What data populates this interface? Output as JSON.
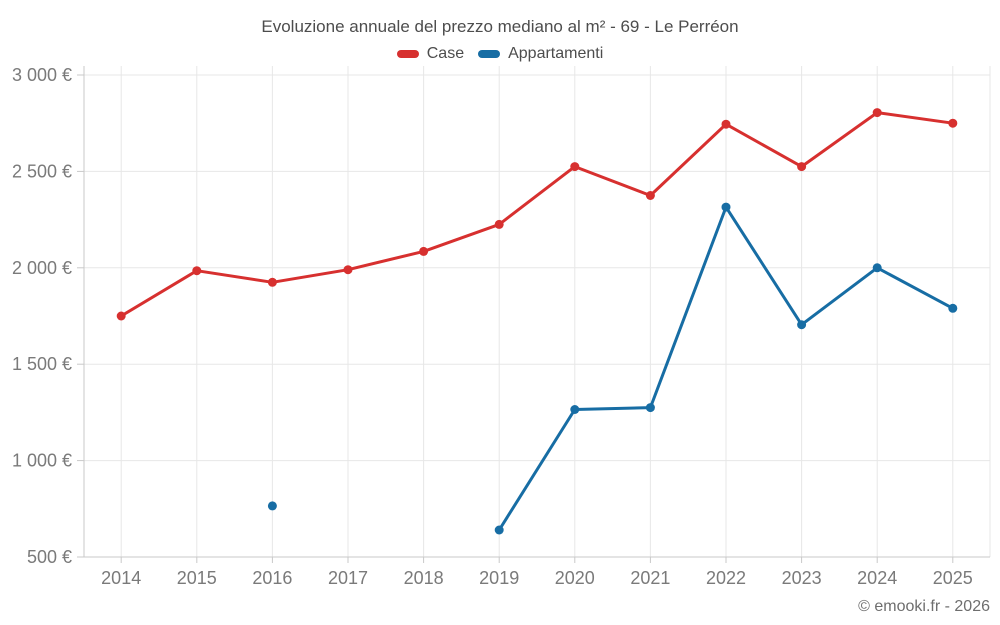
{
  "title": "Evoluzione annuale del prezzo mediano al m² - 69 - Le Perréon",
  "footer": "© emooki.fr - 2026",
  "colors": {
    "case": "#d7302f",
    "appartamenti": "#176da4",
    "grid": "#e7e7e7",
    "axis": "#c9c9c9",
    "title_text": "#4d4d4d",
    "tick_text": "#7a7a7a"
  },
  "chart_data": {
    "type": "line",
    "title": "Evoluzione annuale del prezzo mediano al m² - 69 - Le Perréon",
    "categories": [
      "2014",
      "2015",
      "2016",
      "2017",
      "2018",
      "2019",
      "2020",
      "2021",
      "2022",
      "2023",
      "2024",
      "2025"
    ],
    "series": [
      {
        "name": "Case",
        "color": "#d7302f",
        "values": [
          1750,
          1985,
          1925,
          1990,
          2085,
          2225,
          2525,
          2375,
          2745,
          2525,
          2805,
          2750
        ]
      },
      {
        "name": "Appartamenti",
        "color": "#176da4",
        "values": [
          null,
          null,
          765,
          null,
          null,
          640,
          1265,
          1275,
          2315,
          1705,
          2000,
          1790
        ]
      }
    ],
    "ylim": [
      500,
      3000
    ],
    "yticks": [
      {
        "value": 500,
        "label": "500 €"
      },
      {
        "value": 1000,
        "label": "1 000 €"
      },
      {
        "value": 1500,
        "label": "1 500 €"
      },
      {
        "value": 2000,
        "label": "2 000 €"
      },
      {
        "value": 2500,
        "label": "2 500 €"
      },
      {
        "value": 3000,
        "label": "3 000 €"
      }
    ],
    "y_unit": "€",
    "grid": true,
    "legend_position": "top"
  }
}
